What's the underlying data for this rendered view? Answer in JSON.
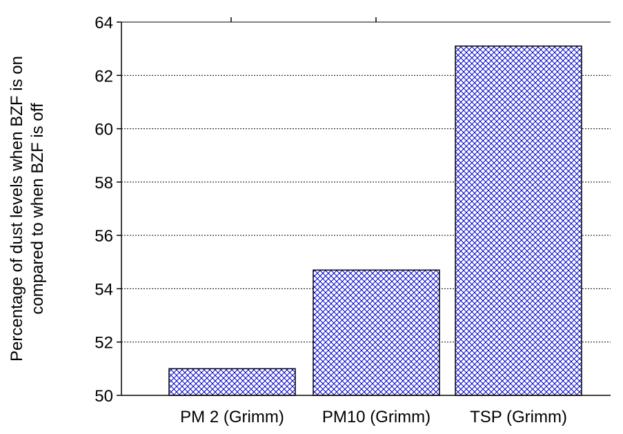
{
  "chart_data": {
    "type": "bar",
    "title": "",
    "xlabel": "",
    "ylabel": "Percentage of dust levels when BZF is on compared to when BZF is off",
    "ylabel_lines": [
      "Percentage of dust levels when BZF is on",
      "compared to when BZF is off"
    ],
    "categories": [
      "PM 2 (Grimm)",
      "PM10 (Grimm)",
      "TSP (Grimm)"
    ],
    "values": [
      51.0,
      54.7,
      63.1
    ],
    "ylim": [
      50,
      64
    ],
    "yticks": [
      50,
      52,
      54,
      56,
      58,
      60,
      62,
      64
    ],
    "grid": "horizontal dotted",
    "legend": "none",
    "bar_fill": "crosshatch",
    "colors": {
      "hatch": "#0000cc",
      "bar_edge": "#000000",
      "grid": "#000000",
      "axis": "#000000"
    }
  }
}
